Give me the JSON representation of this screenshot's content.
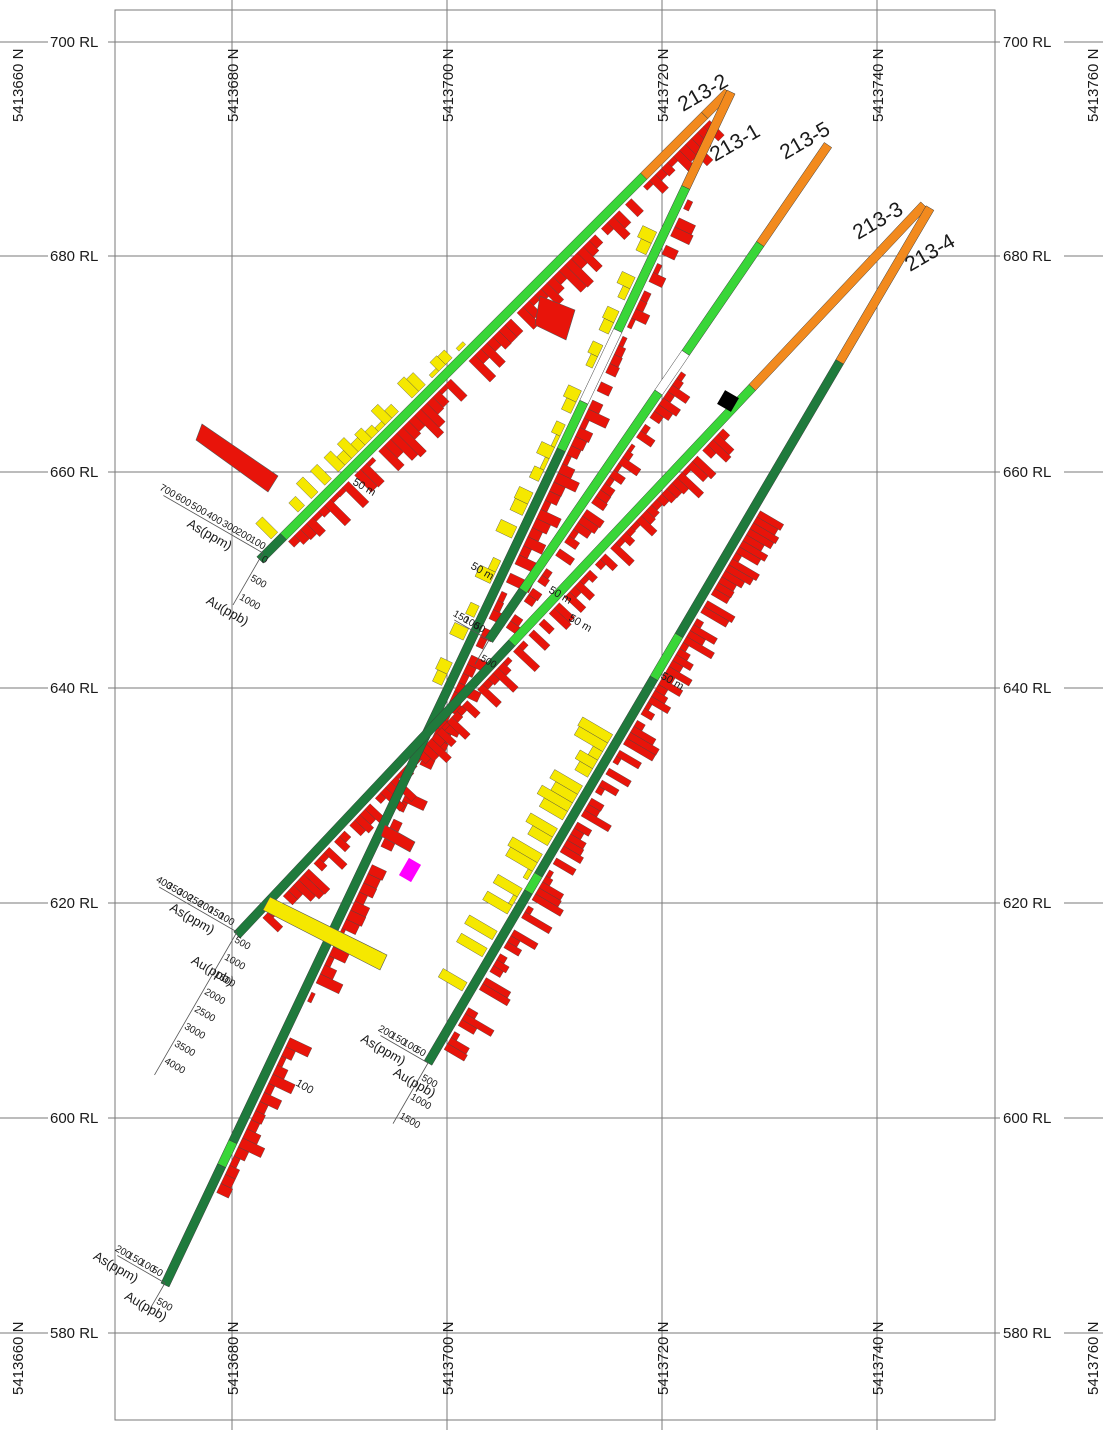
{
  "section": {
    "rl_labels": [
      "700 RL",
      "680 RL",
      "660 RL",
      "640 RL",
      "620 RL",
      "600 RL",
      "580 RL"
    ],
    "northing_labels": [
      "5413660 N",
      "5413680 N",
      "5413700 N",
      "5413720 N",
      "5413740 N",
      "5413760 N"
    ]
  },
  "holes": [
    {
      "id": "213-2"
    },
    {
      "id": "213-1"
    },
    {
      "id": "213-5"
    },
    {
      "id": "213-3"
    },
    {
      "id": "213-4"
    }
  ],
  "legend": {
    "arsenic_label": "As(ppm)",
    "gold_label": "Au(ppb)",
    "as_ticks_700": [
      "700",
      "600",
      "500",
      "400",
      "300",
      "200",
      "100",
      "0"
    ],
    "au_ticks_500_1000": [
      "0",
      "500",
      "1000"
    ],
    "as_ticks_400": [
      "400",
      "350",
      "300",
      "250",
      "200",
      "150",
      "100",
      "50",
      "0"
    ],
    "au_ticks_4000": [
      "0",
      "500",
      "1000",
      "1500",
      "2000",
      "2500",
      "3000",
      "3500",
      "4000"
    ],
    "as_ticks_200": [
      "200",
      "150",
      "100",
      "50",
      "0"
    ],
    "au_ticks_1500": [
      "0",
      "500",
      "1000",
      "1500"
    ],
    "as_ticks_150": [
      "150",
      "100",
      "50",
      "0"
    ],
    "au_ticks_500": [
      "0",
      "500"
    ]
  },
  "depth_marks": [
    "50 m",
    "50 m",
    "50 m",
    "50 m",
    "50 m",
    "100"
  ],
  "colors": {
    "arsenic_histogram": "#e8140a",
    "gold_histogram": "#f5e800",
    "collar_zone": "#f28a1e",
    "light_green_zone": "#39d638",
    "dark_green_zone": "#1f7a3c",
    "magenta_interval": "#ff00ff",
    "black_interval": "#000000",
    "grid": "#7a7a7a"
  }
}
